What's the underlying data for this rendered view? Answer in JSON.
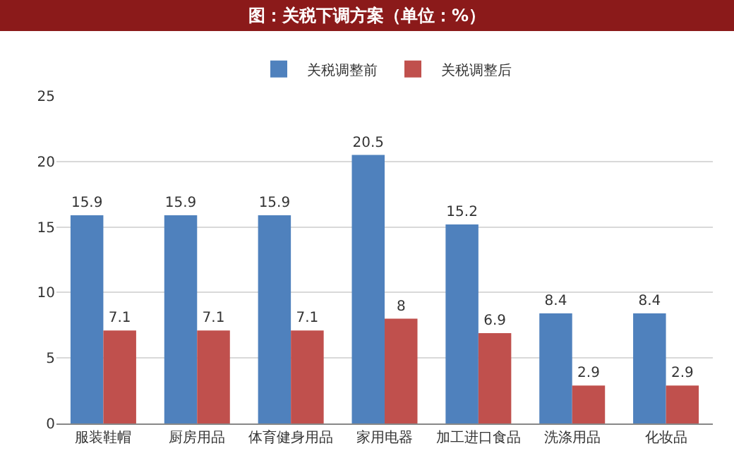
{
  "chart_data": {
    "type": "bar",
    "title": "图：关税下调方案（单位：%）",
    "categories": [
      "服装鞋帽",
      "厨房用品",
      "体育健身用品",
      "家用电器",
      "加工进口食品",
      "洗涤用品",
      "化妆品"
    ],
    "series": [
      {
        "name": "关税调整前",
        "color": "#4f81bd",
        "values": [
          15.9,
          15.9,
          15.9,
          20.5,
          15.2,
          8.4,
          8.4
        ]
      },
      {
        "name": "关税调整后",
        "color": "#c0504d",
        "values": [
          7.1,
          7.1,
          7.1,
          8,
          6.9,
          2.9,
          2.9
        ]
      }
    ],
    "ylim": [
      0,
      25
    ],
    "yticks": [
      0,
      5,
      10,
      15,
      20,
      25
    ],
    "grid": "y",
    "legend": "top",
    "data_labels": true
  }
}
